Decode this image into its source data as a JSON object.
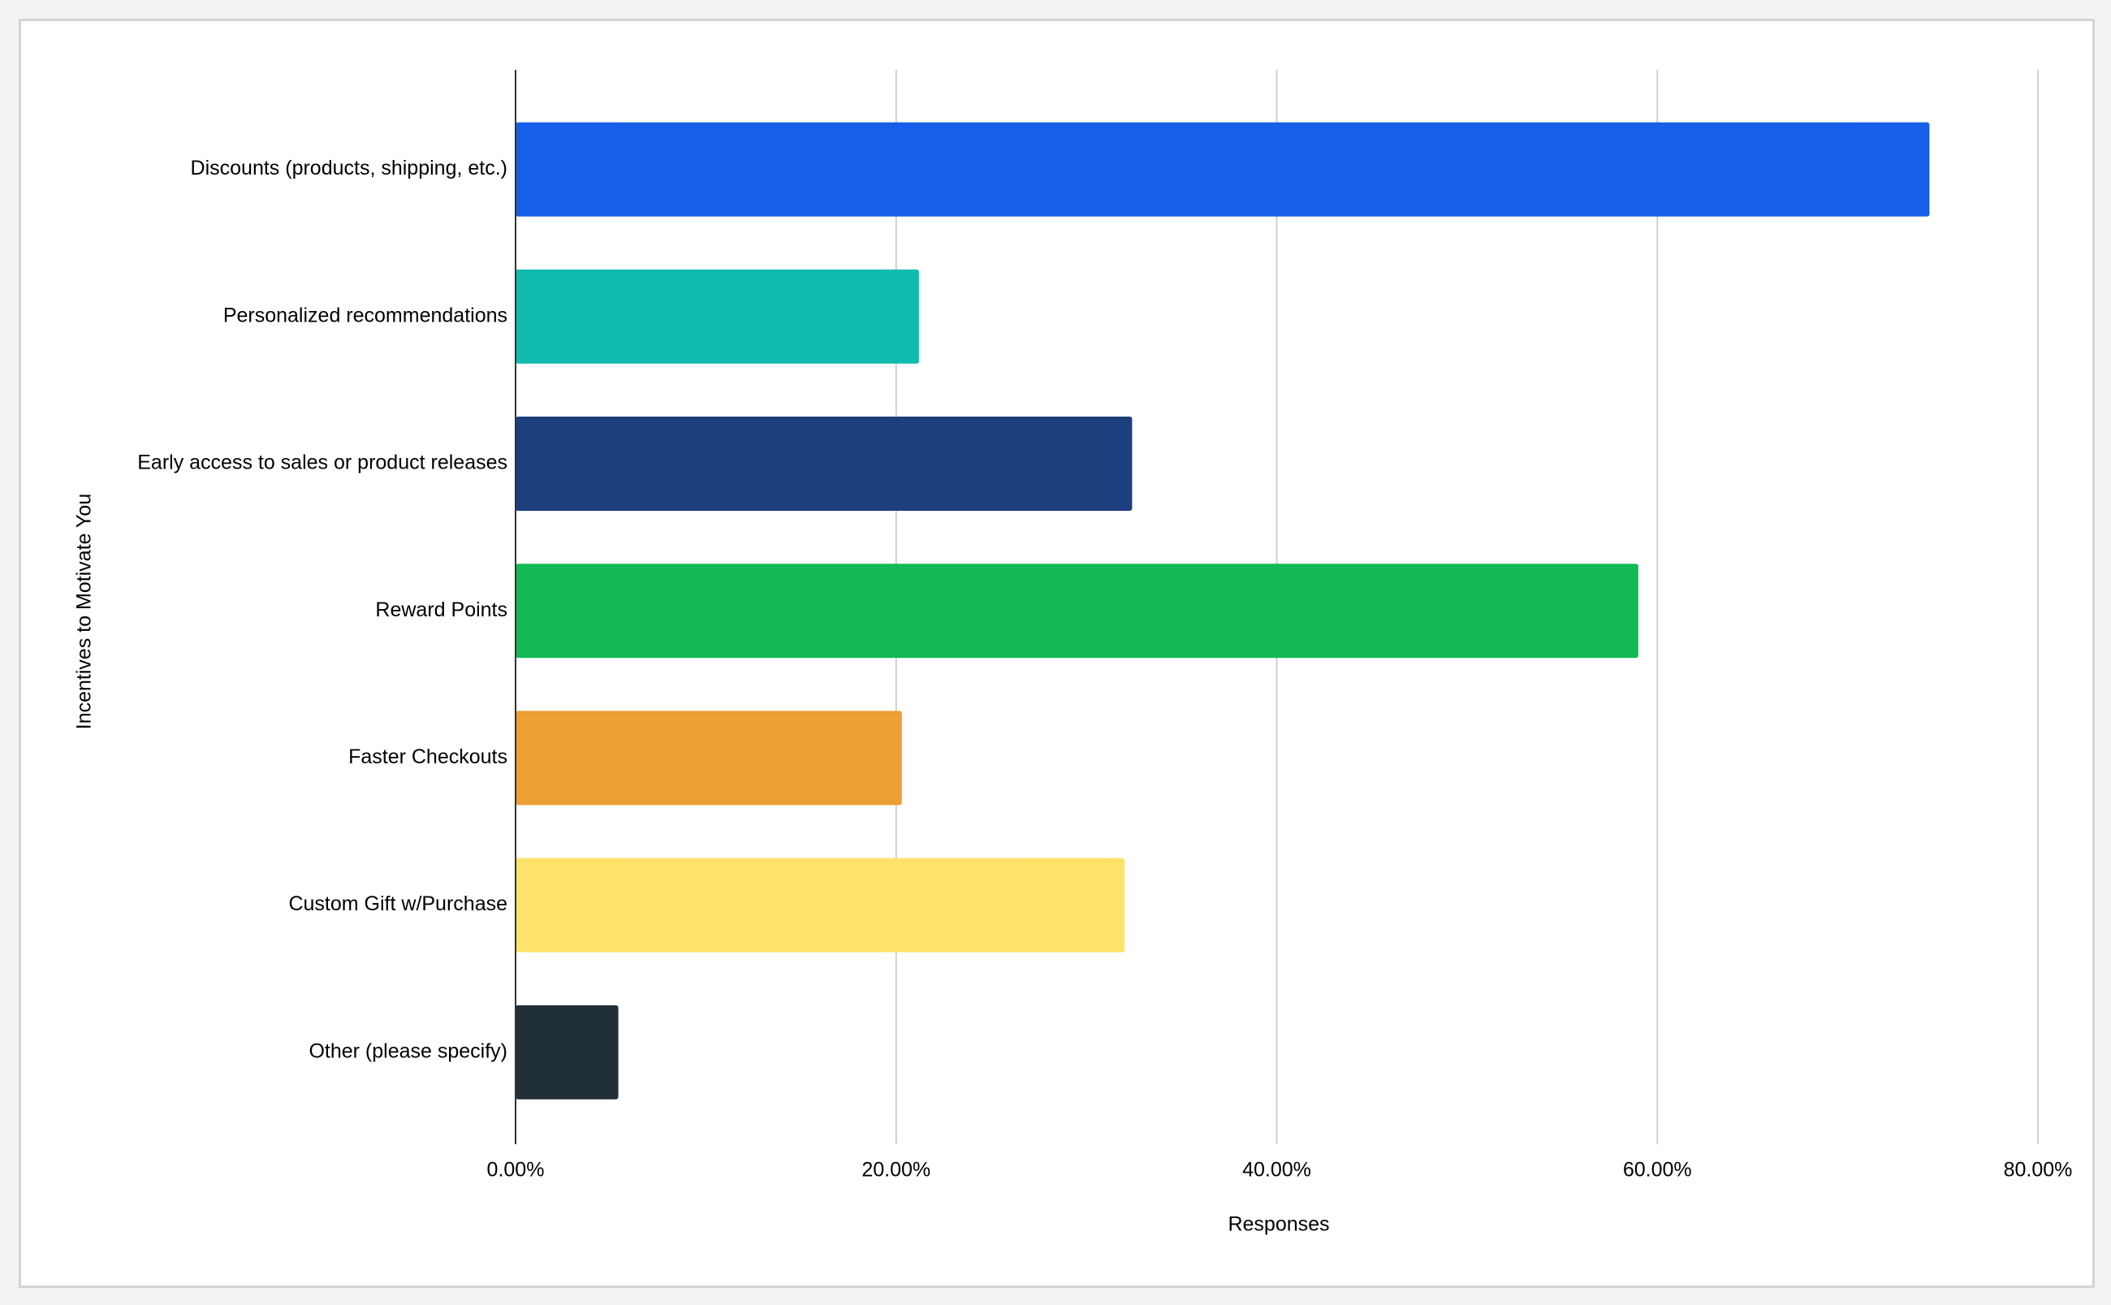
{
  "chart_data": {
    "type": "hbar",
    "categories": [
      "Discounts (products, shipping, etc.)",
      "Personalized recommendations",
      "Early access to sales or product releases",
      "Reward Points",
      "Faster Checkouts",
      "Custom Gift w/Purchase",
      "Other (please specify)"
    ],
    "values": [
      74.3,
      21.2,
      32.4,
      59.0,
      20.3,
      32.0,
      5.4
    ],
    "colors": [
      "#175fe8",
      "#10bbb0",
      "#1c3f7e",
      "#13b954",
      "#ec9f33",
      "#ffe26a",
      "#212f36"
    ],
    "xlim": [
      0,
      80
    ],
    "xticks": [
      {
        "value": 0,
        "label": "0.00%"
      },
      {
        "value": 20,
        "label": "20.00%"
      },
      {
        "value": 40,
        "label": "40.00%"
      },
      {
        "value": 60,
        "label": "60.00%"
      },
      {
        "value": 80,
        "label": "80.00%"
      }
    ],
    "xlabel": "Responses",
    "ylabel": "Incentives to Motivate You",
    "grid": true
  }
}
